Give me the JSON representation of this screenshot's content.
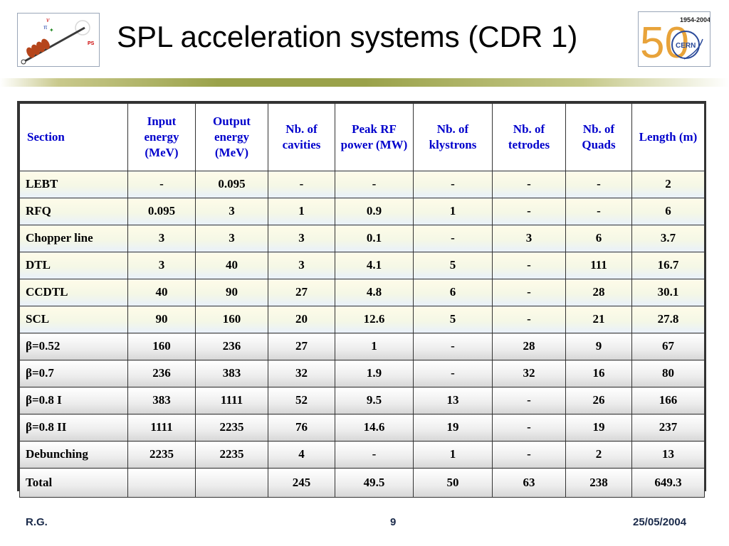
{
  "title": "SPL acceleration systems (CDR 1)",
  "logos": {
    "left": {
      "tag": "PS"
    },
    "right": {
      "years": "1954-2004",
      "anniversary": "50",
      "org": "CERN"
    }
  },
  "table": {
    "headers": [
      "Section",
      "Input energy (MeV)",
      "Output energy (MeV)",
      "Nb. of cavities",
      "Peak RF power (MW)",
      "Nb. of klystrons",
      "Nb. of tetrodes",
      "Nb. of Quads",
      "Length (m)"
    ],
    "rows": [
      {
        "cells": [
          "LEBT",
          "-",
          "0.095",
          "-",
          "-",
          "-",
          "-",
          "-",
          "2"
        ],
        "style": "warm"
      },
      {
        "cells": [
          "RFQ",
          "0.095",
          "3",
          "1",
          "0.9",
          "1",
          "-",
          "-",
          "6"
        ],
        "style": "warm"
      },
      {
        "cells": [
          "Chopper line",
          "3",
          "3",
          "3",
          "0.1",
          "-",
          "3",
          "6",
          "3.7"
        ],
        "style": "warm"
      },
      {
        "cells": [
          "DTL",
          "3",
          "40",
          "3",
          "4.1",
          "5",
          "-",
          "111",
          "16.7"
        ],
        "style": "warm"
      },
      {
        "cells": [
          "CCDTL",
          "40",
          "90",
          "27",
          "4.8",
          "6",
          "-",
          "28",
          "30.1"
        ],
        "style": "warm"
      },
      {
        "cells": [
          "SCL",
          "90",
          "160",
          "20",
          "12.6",
          "5",
          "-",
          "21",
          "27.8"
        ],
        "style": "warm"
      },
      {
        "cells": [
          "β=0.52",
          "160",
          "236",
          "27",
          "1",
          "-",
          "28",
          "9",
          "67"
        ],
        "style": "grey"
      },
      {
        "cells": [
          "β=0.7",
          "236",
          "383",
          "32",
          "1.9",
          "-",
          "32",
          "16",
          "80"
        ],
        "style": "grey"
      },
      {
        "cells": [
          "β=0.8 I",
          "383",
          "1111",
          "52",
          "9.5",
          "13",
          "-",
          "26",
          "166"
        ],
        "style": "grey"
      },
      {
        "cells": [
          "β=0.8 II",
          "1111",
          "2235",
          "76",
          "14.6",
          "19",
          "-",
          "19",
          "237"
        ],
        "style": "grey"
      },
      {
        "cells": [
          "Debunching",
          "2235",
          "2235",
          "4",
          "-",
          "1",
          "-",
          "2",
          "13"
        ],
        "style": "grey"
      },
      {
        "cells": [
          "Total",
          "",
          "",
          "245",
          "49.5",
          "50",
          "63",
          "238",
          "649.3"
        ],
        "style": "total"
      }
    ]
  },
  "footer": {
    "author": "R.G.",
    "page": "9",
    "date": "25/05/2004"
  }
}
